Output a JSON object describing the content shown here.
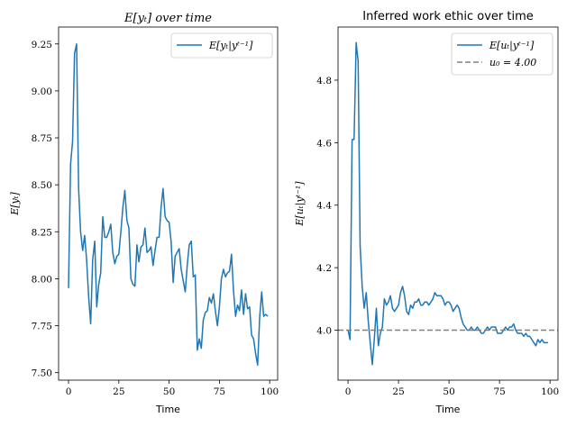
{
  "chart_data": [
    {
      "type": "line",
      "title": "E[yₜ] over time",
      "xlabel": "Time",
      "ylabel": "E[yₜ]",
      "xlim": [
        -4.95,
        103.95
      ],
      "ylim": [
        7.46,
        9.34
      ],
      "xticks": [
        0,
        25,
        50,
        75,
        100
      ],
      "yticks": [
        7.5,
        7.75,
        8.0,
        8.25,
        8.5,
        8.75,
        9.0,
        9.25
      ],
      "ytick_labels": [
        "7.50",
        "7.75",
        "8.00",
        "8.25",
        "8.50",
        "8.75",
        "9.00",
        "9.25"
      ],
      "grid": false,
      "legend": "top-right",
      "series": [
        {
          "name": "E[yₜ|yᵗ⁻¹]",
          "color": "#1f77b4",
          "style": "solid",
          "values": [
            7.95,
            8.61,
            8.73,
            9.2,
            9.25,
            8.48,
            8.25,
            8.15,
            8.23,
            8.1,
            7.9,
            7.76,
            8.1,
            8.2,
            7.85,
            7.97,
            8.03,
            8.33,
            8.22,
            8.22,
            8.25,
            8.29,
            8.14,
            8.08,
            8.12,
            8.13,
            8.25,
            8.38,
            8.47,
            8.31,
            8.27,
            8.0,
            7.97,
            7.96,
            8.18,
            8.09,
            8.17,
            8.18,
            8.27,
            8.14,
            8.15,
            8.17,
            8.07,
            8.15,
            8.22,
            8.22,
            8.38,
            8.48,
            8.33,
            8.31,
            8.3,
            8.2,
            7.98,
            8.12,
            8.14,
            8.16,
            8.05,
            7.99,
            7.93,
            8.07,
            8.18,
            8.2,
            8.01,
            8.02,
            7.62,
            7.68,
            7.63,
            7.78,
            7.82,
            7.83,
            7.9,
            7.87,
            7.92,
            7.83,
            7.75,
            7.85,
            8.0,
            8.05,
            8.01,
            8.03,
            8.04,
            8.13,
            7.94,
            7.8,
            7.86,
            7.83,
            7.94,
            7.81,
            7.92,
            7.84,
            7.85,
            7.7,
            7.68,
            7.6,
            7.54,
            7.79,
            7.93,
            7.8,
            7.81,
            7.8
          ]
        }
      ]
    },
    {
      "type": "line",
      "title": "Inferred work ethic over time",
      "xlabel": "Time",
      "ylabel": "E[uₜ|yᵗ⁻¹]",
      "xlim": [
        -4.95,
        103.95
      ],
      "ylim": [
        3.84,
        4.97
      ],
      "xticks": [
        0,
        25,
        50,
        75,
        100
      ],
      "yticks": [
        4.0,
        4.2,
        4.4,
        4.6,
        4.8
      ],
      "ytick_labels": [
        "4.0",
        "4.2",
        "4.4",
        "4.6",
        "4.8"
      ],
      "grid": false,
      "legend": "top-right",
      "series": [
        {
          "name": "E[uₜ|yᵗ⁻¹]",
          "color": "#1f77b4",
          "style": "solid",
          "values": [
            4.0,
            3.97,
            4.61,
            4.61,
            4.92,
            4.86,
            4.27,
            4.14,
            4.07,
            4.12,
            4.03,
            3.96,
            3.89,
            3.97,
            4.07,
            3.95,
            3.99,
            4.01,
            4.1,
            4.08,
            4.09,
            4.11,
            4.07,
            4.06,
            4.07,
            4.08,
            4.12,
            4.14,
            4.11,
            4.06,
            4.05,
            4.08,
            4.07,
            4.09,
            4.09,
            4.1,
            4.08,
            4.08,
            4.09,
            4.09,
            4.08,
            4.09,
            4.1,
            4.12,
            4.11,
            4.11,
            4.11,
            4.1,
            4.08,
            4.09,
            4.09,
            4.08,
            4.06,
            4.07,
            4.08,
            4.07,
            4.04,
            4.02,
            4.01,
            4.0,
            4.0,
            4.01,
            4.0,
            4.0,
            4.01,
            4.0,
            3.99,
            3.99,
            4.0,
            4.01,
            4.0,
            4.01,
            4.01,
            4.01,
            3.99,
            3.99,
            3.99,
            4.0,
            4.01,
            4.0,
            4.01,
            4.01,
            4.02,
            4.0,
            3.99,
            3.99,
            3.99,
            3.98,
            3.99,
            3.98,
            3.98,
            3.97,
            3.96,
            3.95,
            3.97,
            3.96,
            3.97,
            3.96,
            3.96,
            3.96
          ]
        },
        {
          "name": "u₀ = 4.00",
          "color": "#808080",
          "style": "dashed",
          "hline": 4.0
        }
      ]
    }
  ]
}
